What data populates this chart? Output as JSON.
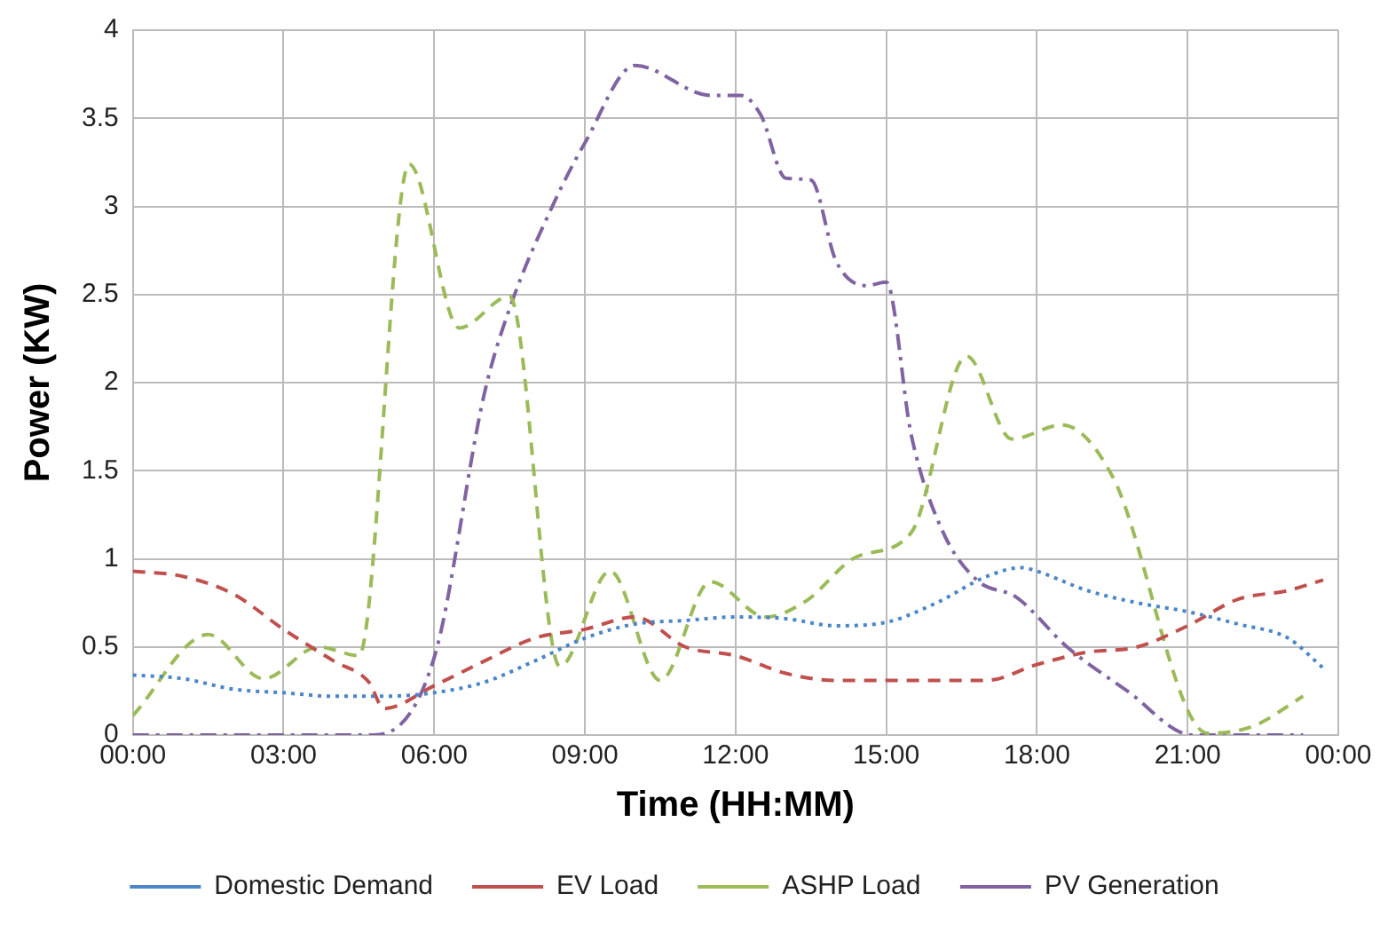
{
  "chart_data": {
    "type": "line",
    "xlabel": "Time (HH:MM)",
    "ylabel": "Power (KW)",
    "xlim": [
      0,
      24
    ],
    "xticks": [
      {
        "value": 0,
        "label": "00:00"
      },
      {
        "value": 3,
        "label": "03:00"
      },
      {
        "value": 6,
        "label": "06:00"
      },
      {
        "value": 9,
        "label": "09:00"
      },
      {
        "value": 12,
        "label": "12:00"
      },
      {
        "value": 15,
        "label": "15:00"
      },
      {
        "value": 18,
        "label": "18:00"
      },
      {
        "value": 21,
        "label": "21:00"
      },
      {
        "value": 24,
        "label": "00:00"
      }
    ],
    "ylim": [
      0,
      4
    ],
    "yticks": [
      0,
      0.5,
      1,
      1.5,
      2,
      2.5,
      3,
      3.5,
      4
    ],
    "grid": true,
    "legend": "bottom",
    "marker": "none",
    "series": [
      {
        "name": "Domestic Demand",
        "color": "#4a86c8",
        "line_style": "dotted",
        "x": [
          0,
          1,
          2,
          3,
          4,
          5,
          6,
          7,
          8,
          9,
          10,
          11,
          12,
          13,
          14,
          15,
          16,
          17,
          17.7,
          18,
          19,
          20,
          21,
          22,
          23,
          23.7
        ],
        "values": [
          0.34,
          0.32,
          0.26,
          0.24,
          0.22,
          0.22,
          0.24,
          0.3,
          0.42,
          0.55,
          0.63,
          0.65,
          0.67,
          0.66,
          0.62,
          0.64,
          0.75,
          0.9,
          0.95,
          0.93,
          0.82,
          0.75,
          0.7,
          0.63,
          0.55,
          0.38
        ]
      },
      {
        "name": "EV Load",
        "color": "#c0504d",
        "line_style": "dashed",
        "x": [
          0,
          1,
          2,
          3,
          4,
          4.7,
          5,
          6,
          7,
          8,
          9,
          10,
          11,
          12,
          13,
          14,
          15,
          16,
          17,
          18,
          19,
          20,
          21,
          22,
          23,
          23.7
        ],
        "values": [
          0.93,
          0.9,
          0.8,
          0.6,
          0.42,
          0.3,
          0.15,
          0.28,
          0.42,
          0.55,
          0.6,
          0.67,
          0.5,
          0.45,
          0.35,
          0.31,
          0.31,
          0.31,
          0.31,
          0.4,
          0.47,
          0.5,
          0.62,
          0.77,
          0.82,
          0.88
        ]
      },
      {
        "name": "ASHP Load",
        "color": "#9bbb59",
        "line_style": "dashed",
        "x": [
          0,
          1.5,
          2.6,
          3.7,
          4.5,
          5.5,
          6.5,
          7.5,
          8.5,
          9.5,
          10.5,
          11.5,
          12.6,
          13.4,
          14.4,
          15.5,
          16.6,
          17.5,
          18.5,
          19.5,
          21.4,
          22.3,
          23.3
        ],
        "values": [
          0.11,
          0.57,
          0.32,
          0.5,
          0.45,
          3.24,
          2.31,
          2.49,
          0.39,
          0.93,
          0.31,
          0.87,
          0.67,
          0.76,
          1.01,
          1.15,
          2.15,
          1.68,
          1.76,
          1.47,
          0.01,
          0.05,
          0.22
        ]
      },
      {
        "name": "PV Generation",
        "color": "#8064a2",
        "line_style": "dashdot",
        "x": [
          0,
          4.8,
          6,
          7,
          7.5,
          8.4,
          9,
          10,
          11.5,
          12.1,
          12.5,
          13,
          13.5,
          14,
          14.6,
          15,
          15.5,
          16.1,
          16.8,
          17.6,
          18.6,
          19.8,
          21.1,
          23.3
        ],
        "values": [
          0,
          0,
          0.44,
          1.94,
          2.42,
          3.03,
          3.36,
          3.8,
          3.63,
          3.63,
          3.52,
          3.16,
          3.15,
          2.69,
          2.55,
          2.57,
          1.7,
          1.17,
          0.88,
          0.78,
          0.5,
          0.25,
          0,
          0
        ]
      }
    ]
  }
}
